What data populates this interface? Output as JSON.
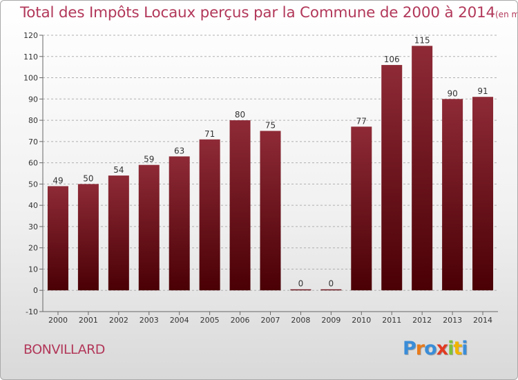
{
  "title": "Total des Impôts Locaux perçus par la Commune de 2000 à 2014",
  "unit_note": "(en milliers d'€)",
  "commune": "BONVILLARD",
  "logo": {
    "text": "Proxiti",
    "colors": [
      "#3a8dd8",
      "#e87b1c",
      "#3a8dd8",
      "#e23b22",
      "#7dc23b",
      "#f0b400",
      "#3a8dd8"
    ]
  },
  "colors": {
    "bar_top": "#8e2a36",
    "bar_bottom": "#4a0005",
    "title": "#b2385a",
    "axis_text": "#333333",
    "grid": "#b0b0b0"
  },
  "chart_data": {
    "type": "bar",
    "title": "Total des Impôts Locaux perçus par la Commune de 2000 à 2014",
    "xlabel": "",
    "ylabel": "",
    "categories": [
      "2000",
      "2001",
      "2002",
      "2003",
      "2004",
      "2005",
      "2006",
      "2007",
      "2008",
      "2009",
      "2010",
      "2011",
      "2012",
      "2013",
      "2014"
    ],
    "values": [
      49,
      50,
      54,
      59,
      63,
      71,
      80,
      75,
      0,
      0,
      77,
      106,
      115,
      90,
      91
    ],
    "data_labels": [
      "49",
      "50",
      "54",
      "59",
      "63",
      "71",
      "80",
      "75",
      "0",
      "0",
      "77",
      "106",
      "115",
      "90",
      "91"
    ],
    "ylim": [
      -10,
      120
    ],
    "yticks": [
      -10,
      0,
      10,
      20,
      30,
      40,
      50,
      60,
      70,
      80,
      90,
      100,
      110,
      120
    ],
    "grid": "horizontal dashed",
    "legend": "none"
  }
}
